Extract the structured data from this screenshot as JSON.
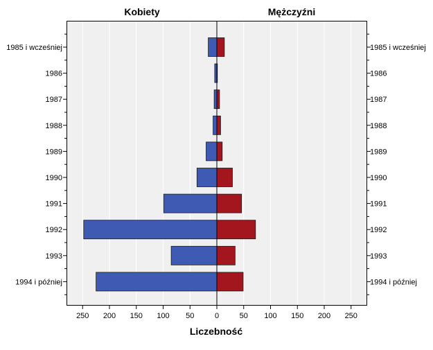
{
  "chart_data": {
    "type": "bar",
    "orientation": "horizontal",
    "layout": "population-pyramid",
    "categories": [
      "1985 i wcześniej",
      "1986",
      "1987",
      "1988",
      "1989",
      "1990",
      "1991",
      "1992",
      "1993",
      "1994 i później"
    ],
    "series": [
      {
        "name": "Kobiety",
        "values": [
          16,
          4,
          5,
          7,
          20,
          37,
          99,
          248,
          85,
          225
        ]
      },
      {
        "name": "Mężczyźni",
        "values": [
          14,
          1,
          5,
          7,
          10,
          29,
          46,
          72,
          34,
          49
        ]
      }
    ],
    "xlabel": "Liczebność",
    "xlim": [
      -280,
      280
    ],
    "xticks": [
      -250,
      -200,
      -150,
      -100,
      -50,
      0,
      50,
      100,
      150,
      200,
      250
    ],
    "xtick_labels": [
      "250",
      "200",
      "150",
      "100",
      "50",
      "0",
      "50",
      "100",
      "150",
      "200",
      "250"
    ],
    "grid": true,
    "colors": {
      "Kobiety": "#3f5ab3",
      "Mężczyźni": "#a3161e",
      "plot_background": "#f0f0f0",
      "grid": "#ffffff"
    }
  }
}
